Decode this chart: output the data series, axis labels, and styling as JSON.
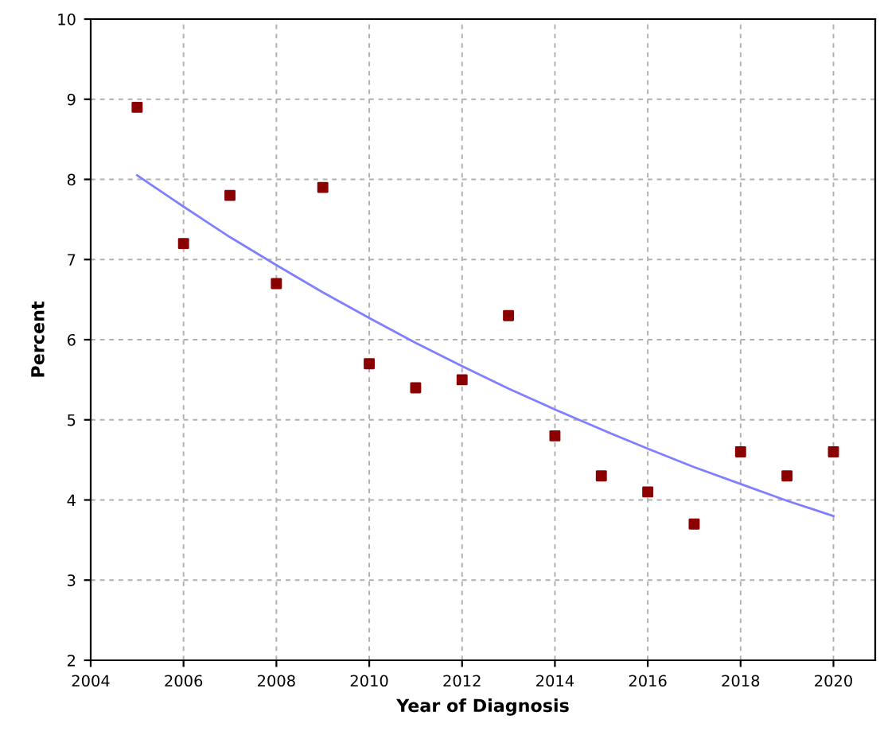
{
  "chart_data": {
    "type": "scatter",
    "xlabel": "Year of Diagnosis",
    "ylabel": "Percent",
    "x": [
      2005,
      2006,
      2007,
      2008,
      2009,
      2010,
      2011,
      2012,
      2013,
      2014,
      2015,
      2016,
      2017,
      2018,
      2019,
      2020
    ],
    "series": [
      {
        "color": "#8b0000",
        "marker": "square",
        "values": [
          8.9,
          7.2,
          7.8,
          6.7,
          7.9,
          5.7,
          5.4,
          5.5,
          6.3,
          4.8,
          4.3,
          4.1,
          3.7,
          4.6,
          4.3,
          4.6
        ]
      },
      {
        "type": "line",
        "color": "#7f7fff",
        "marker": "none",
        "line_style": "solid",
        "x": [
          2005,
          2006,
          2007,
          2008,
          2009,
          2010,
          2011,
          2012,
          2013,
          2014,
          2015,
          2016,
          2017,
          2018,
          2019,
          2020
        ],
        "values": [
          8.05,
          7.66,
          7.28,
          6.93,
          6.59,
          6.27,
          5.96,
          5.67,
          5.39,
          5.13,
          4.88,
          4.64,
          4.41,
          4.2,
          3.99,
          3.8
        ]
      }
    ],
    "xlim": [
      2004,
      2020.9
    ],
    "xticks": [
      2004,
      2006,
      2008,
      2010,
      2012,
      2014,
      2016,
      2018,
      2020
    ],
    "ylim": [
      2,
      10
    ],
    "yticks": [
      2,
      3,
      4,
      5,
      6,
      7,
      8,
      9,
      10
    ],
    "grid": true
  }
}
